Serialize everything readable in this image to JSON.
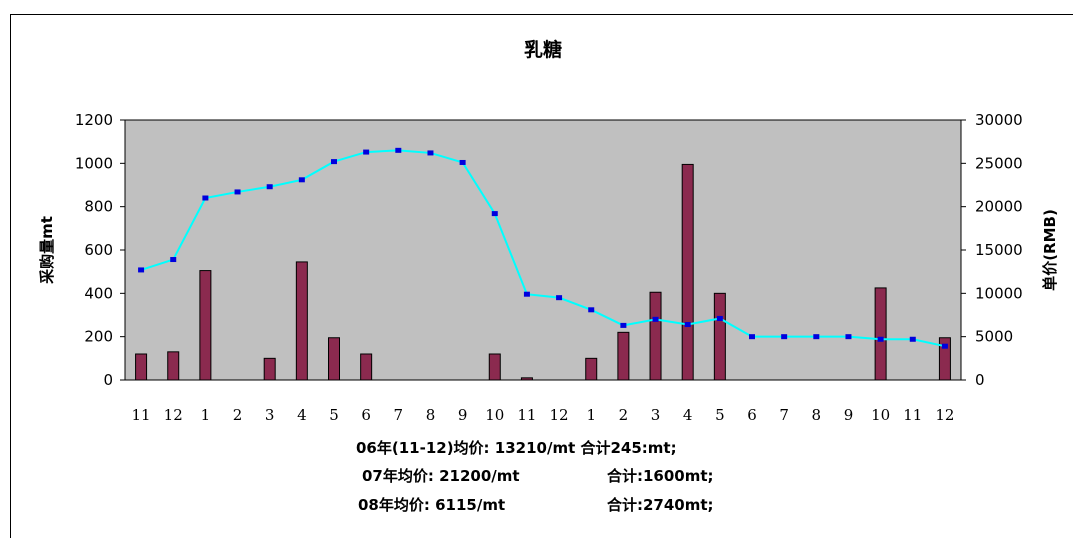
{
  "chart_data": {
    "type": "bar+line",
    "title": "乳糖",
    "categories": [
      "11",
      "12",
      "1",
      "2",
      "3",
      "4",
      "5",
      "6",
      "7",
      "8",
      "9",
      "10",
      "11",
      "12",
      "1",
      "2",
      "3",
      "4",
      "5",
      "6",
      "7",
      "8",
      "9",
      "10",
      "11",
      "12"
    ],
    "ylabel_left": "采购量mt",
    "ylabel_right": "单价(RMB)",
    "ylim_left": [
      0,
      1200
    ],
    "ylim_right": [
      0,
      30000
    ],
    "yticks_left": [
      0,
      200,
      400,
      600,
      800,
      1000,
      1200
    ],
    "yticks_right": [
      0,
      5000,
      10000,
      15000,
      20000,
      25000,
      30000
    ],
    "series": [
      {
        "axis": "left",
        "type": "bar",
        "values": [
          120,
          130,
          505,
          0,
          100,
          545,
          195,
          120,
          0,
          0,
          0,
          120,
          10,
          0,
          100,
          220,
          405,
          995,
          400,
          0,
          0,
          0,
          0,
          425,
          0,
          195
        ]
      },
      {
        "axis": "right",
        "type": "line",
        "values": [
          12700,
          13900,
          21000,
          21700,
          22300,
          23100,
          25200,
          26300,
          26500,
          26200,
          25100,
          19200,
          9900,
          9500,
          8100,
          6300,
          7000,
          6400,
          7100,
          5000,
          5000,
          5000,
          5000,
          4700,
          4700,
          3900
        ]
      }
    ],
    "colors": {
      "plot_bg": "#c0c0c0",
      "bar": "#8b2a4f",
      "line": "#00ffff",
      "marker": "#0000dd"
    },
    "grid": false,
    "legend": "none"
  },
  "notes": [
    "06年(11-12)均价: 13210/mt 合计245:mt;",
    "07年均价: 21200/mt",
    "合计:1600mt;",
    "08年均价: 6115/mt",
    "合计:2740mt;"
  ]
}
